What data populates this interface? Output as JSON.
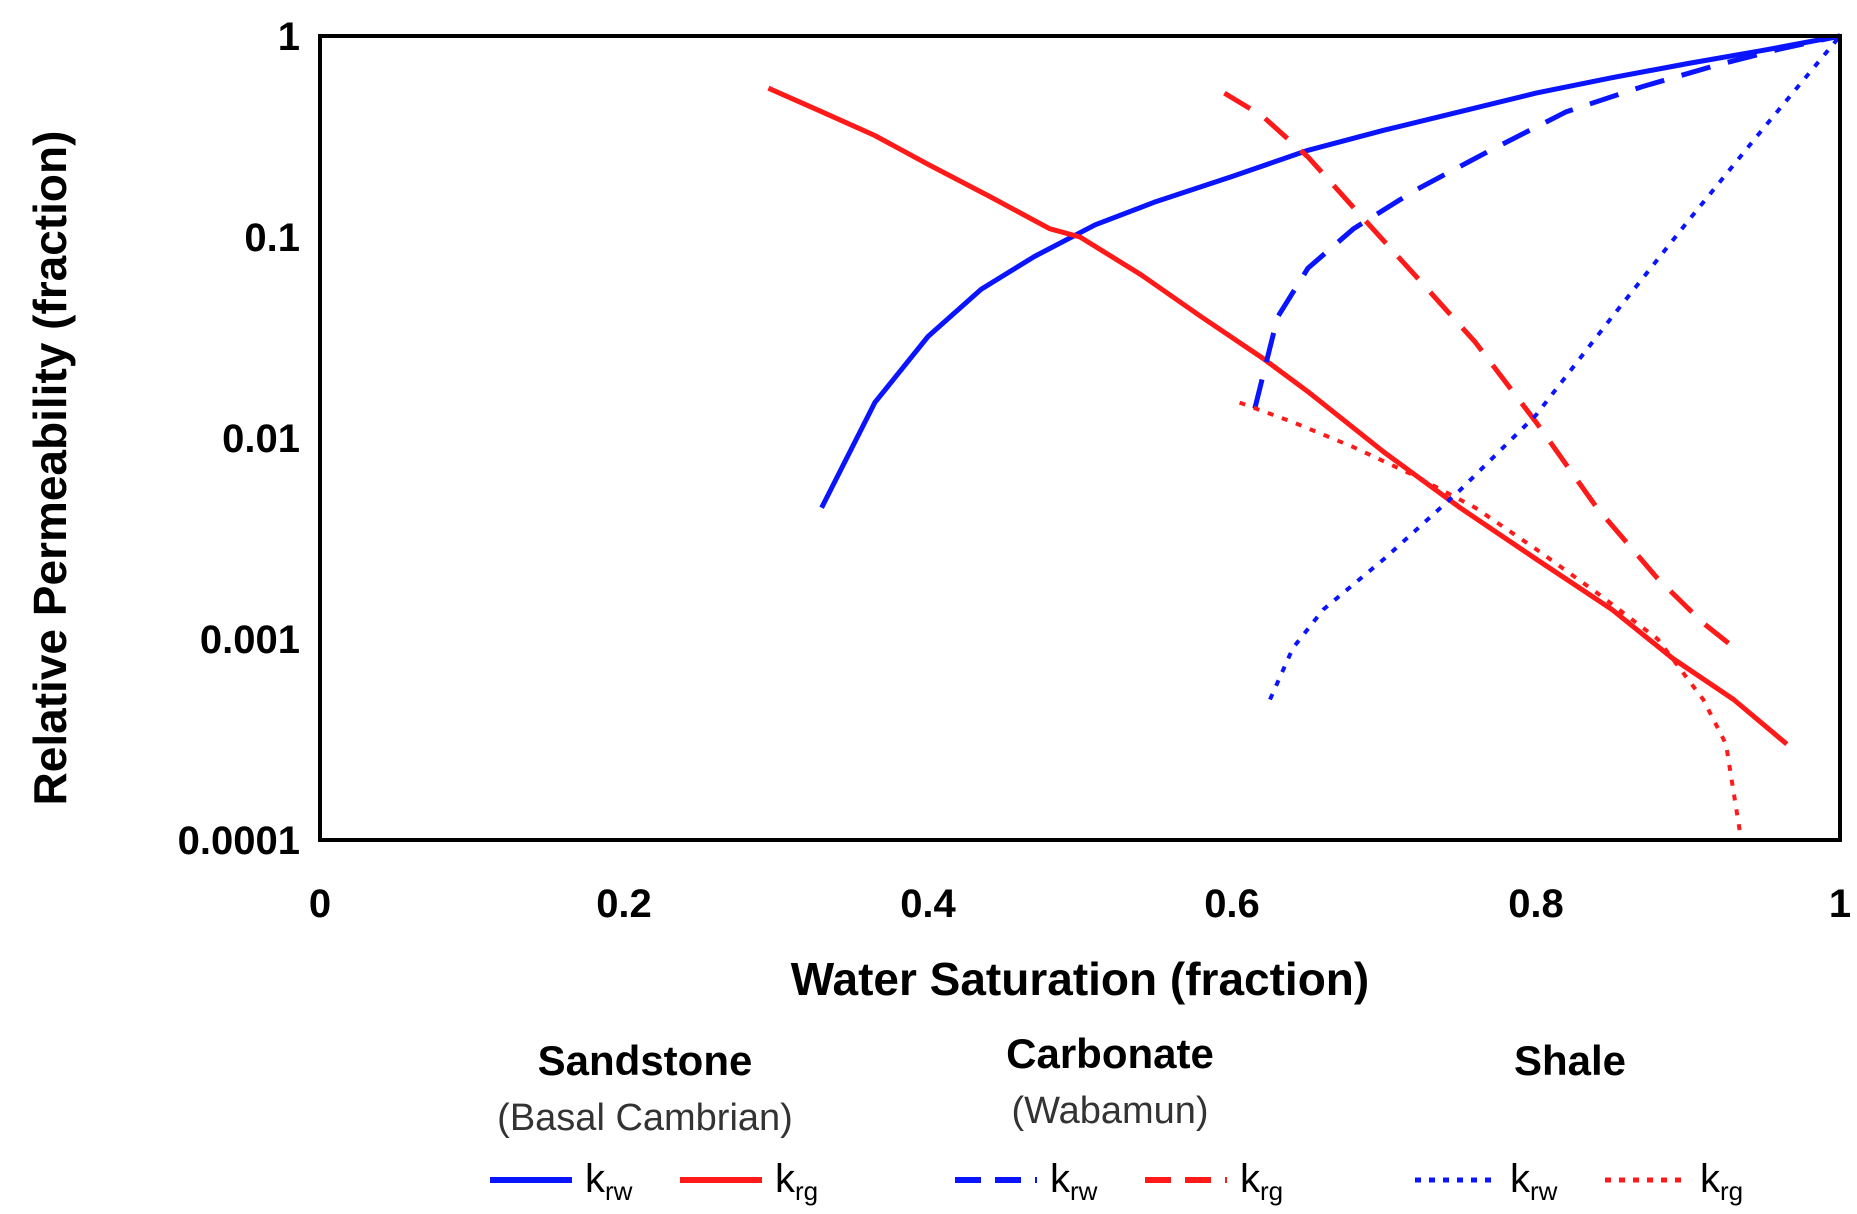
{
  "chart_data": {
    "type": "line",
    "xlabel": "Water Saturation (fraction)",
    "ylabel": "Relative Permeability (fraction)",
    "xlim": [
      0,
      1
    ],
    "ylim": [
      0.0001,
      1
    ],
    "yscale": "log",
    "x_ticks": [
      "0",
      "0.2",
      "0.4",
      "0.6",
      "0.8",
      "1"
    ],
    "y_ticks": [
      "1",
      "0.1",
      "0.01",
      "0.001",
      "0.0001"
    ],
    "grid": false,
    "legend_position": "bottom",
    "legend_groups": [
      {
        "title": "Sandstone",
        "subtitle": "(Basal Cambrian)",
        "style": "solid"
      },
      {
        "title": "Carbonate",
        "subtitle": "(Wabamun)",
        "style": "dashed"
      },
      {
        "title": "Shale",
        "subtitle": "",
        "style": "dotted"
      }
    ],
    "legend_entries": {
      "krw_base": "k",
      "krw_sub": "rw",
      "krg_base": "k",
      "krg_sub": "rg"
    },
    "colors": {
      "krw": "#0a14ff",
      "krg": "#ff1a1a"
    },
    "series": [
      {
        "group": "Sandstone",
        "kind": "krw",
        "style": "solid",
        "x": [
          0.33,
          0.365,
          0.4,
          0.435,
          0.47,
          0.51,
          0.55,
          0.6,
          0.65,
          0.7,
          0.75,
          0.8,
          0.85,
          0.9,
          0.95,
          1.0
        ],
        "y": [
          0.0045,
          0.015,
          0.032,
          0.055,
          0.08,
          0.115,
          0.15,
          0.2,
          0.27,
          0.34,
          0.42,
          0.52,
          0.62,
          0.73,
          0.85,
          1.0
        ]
      },
      {
        "group": "Sandstone",
        "kind": "krg",
        "style": "solid",
        "x": [
          0.295,
          0.33,
          0.365,
          0.4,
          0.44,
          0.48,
          0.5,
          0.54,
          0.58,
          0.62,
          0.65,
          0.7,
          0.75,
          0.8,
          0.85,
          0.89,
          0.93,
          0.965
        ],
        "y": [
          0.55,
          0.42,
          0.32,
          0.23,
          0.16,
          0.11,
          0.1,
          0.065,
          0.04,
          0.025,
          0.017,
          0.0085,
          0.0045,
          0.0025,
          0.0014,
          0.0008,
          0.0005,
          0.0003
        ]
      },
      {
        "group": "Carbonate",
        "kind": "krw",
        "style": "dashed",
        "x": [
          0.615,
          0.63,
          0.65,
          0.68,
          0.72,
          0.77,
          0.82,
          0.87,
          0.92,
          0.96,
          1.0
        ],
        "y": [
          0.014,
          0.04,
          0.07,
          0.11,
          0.17,
          0.27,
          0.42,
          0.56,
          0.72,
          0.86,
          1.0
        ]
      },
      {
        "group": "Carbonate",
        "kind": "krg",
        "style": "dashed",
        "x": [
          0.595,
          0.62,
          0.65,
          0.68,
          0.72,
          0.76,
          0.8,
          0.84,
          0.88,
          0.91,
          0.935
        ],
        "y": [
          0.52,
          0.4,
          0.25,
          0.14,
          0.065,
          0.03,
          0.012,
          0.0045,
          0.002,
          0.0012,
          0.00085
        ]
      },
      {
        "group": "Shale",
        "kind": "krw",
        "style": "dotted",
        "x": [
          0.625,
          0.64,
          0.66,
          0.7,
          0.75,
          0.8,
          0.85,
          0.9,
          0.95,
          1.0
        ],
        "y": [
          0.0005,
          0.0009,
          0.0014,
          0.0025,
          0.0055,
          0.013,
          0.04,
          0.12,
          0.35,
          1.0
        ]
      },
      {
        "group": "Shale",
        "kind": "krg",
        "style": "dotted",
        "x": [
          0.605,
          0.64,
          0.68,
          0.72,
          0.76,
          0.8,
          0.84,
          0.88,
          0.91,
          0.925,
          0.935,
          0.955
        ],
        "y": [
          0.015,
          0.012,
          0.009,
          0.0065,
          0.0045,
          0.0028,
          0.0017,
          0.001,
          0.0005,
          0.0003,
          0.0001,
          0.0001
        ]
      }
    ]
  }
}
